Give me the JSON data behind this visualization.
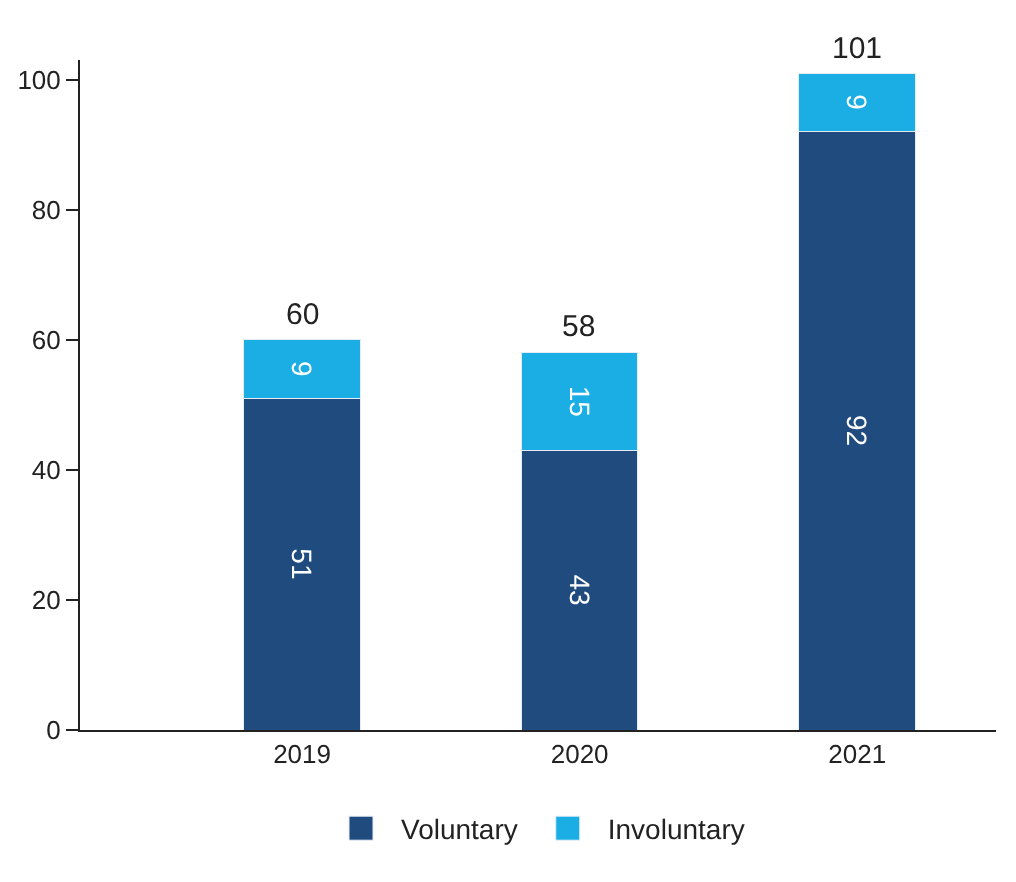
{
  "chart_data": {
    "type": "bar",
    "stacked": true,
    "categories": [
      "2019",
      "2020",
      "2021"
    ],
    "series": [
      {
        "name": "Voluntary",
        "color": "#1f4b7f",
        "values": [
          51,
          43,
          92
        ]
      },
      {
        "name": "Involuntary",
        "color": "#1aaee5",
        "values": [
          9,
          15,
          9
        ]
      }
    ],
    "data_labels": true,
    "totals": [
      "60",
      "58",
      "101"
    ],
    "ylim": [
      0,
      103
    ],
    "yticks": [
      0,
      20,
      40,
      60,
      80,
      100
    ],
    "legend": "bottom"
  }
}
